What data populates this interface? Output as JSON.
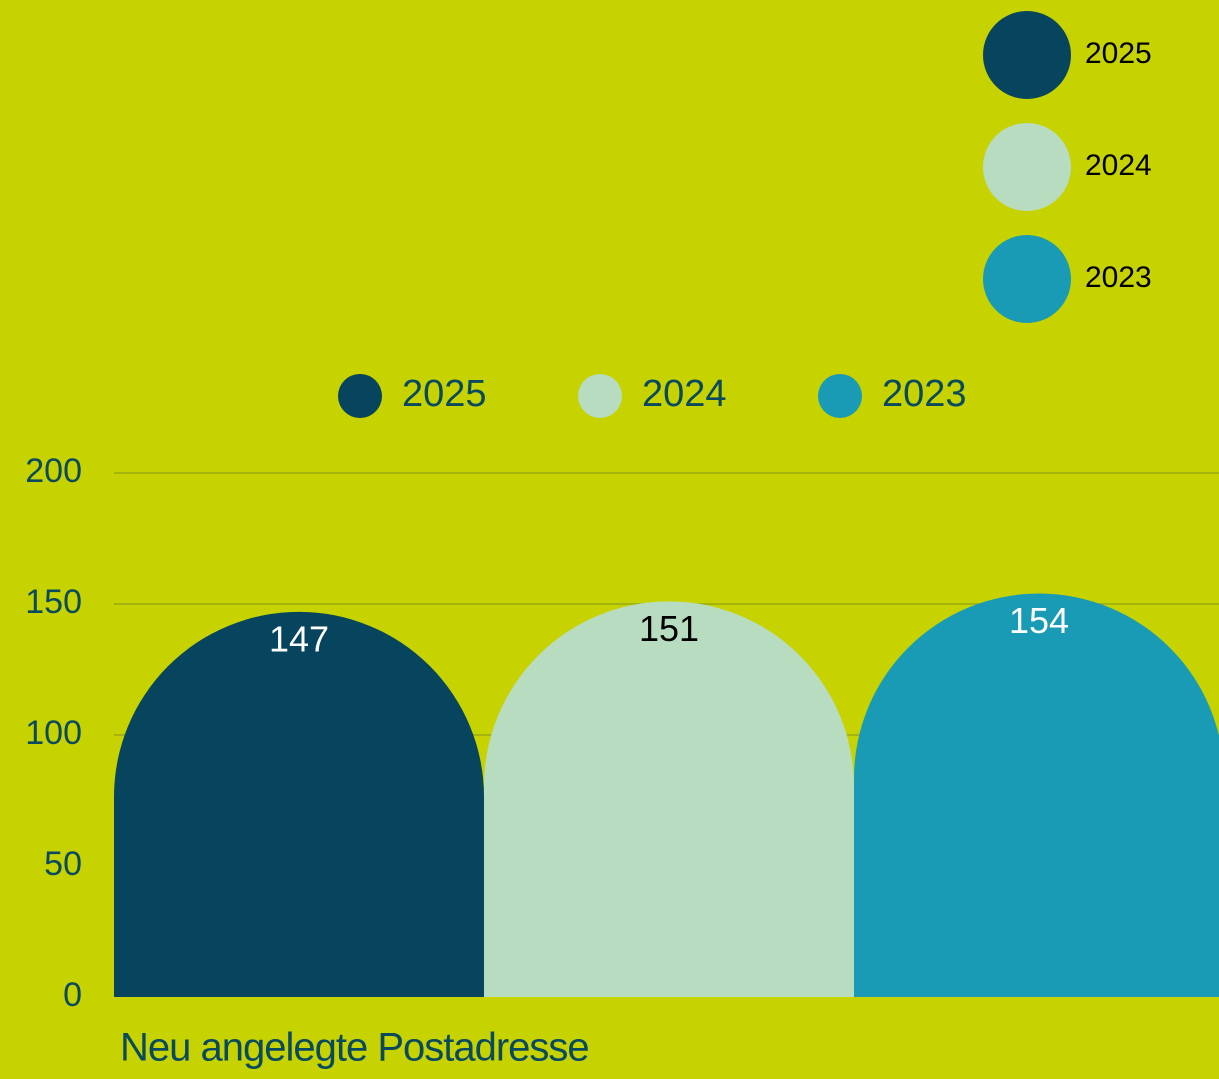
{
  "chart_data": {
    "type": "bar",
    "categories": [
      "Neu angelegte Postadresse"
    ],
    "series": [
      {
        "name": "2025",
        "color": "#07445e",
        "values": [
          147
        ]
      },
      {
        "name": "2024",
        "color": "#b8dcc0",
        "values": [
          151
        ]
      },
      {
        "name": "2023",
        "color": "#1a9bb5",
        "values": [
          154
        ]
      }
    ],
    "ylim": [
      0,
      200
    ],
    "yticks": [
      0,
      50,
      100,
      150,
      200
    ],
    "grid": true,
    "legend": "top"
  }
}
